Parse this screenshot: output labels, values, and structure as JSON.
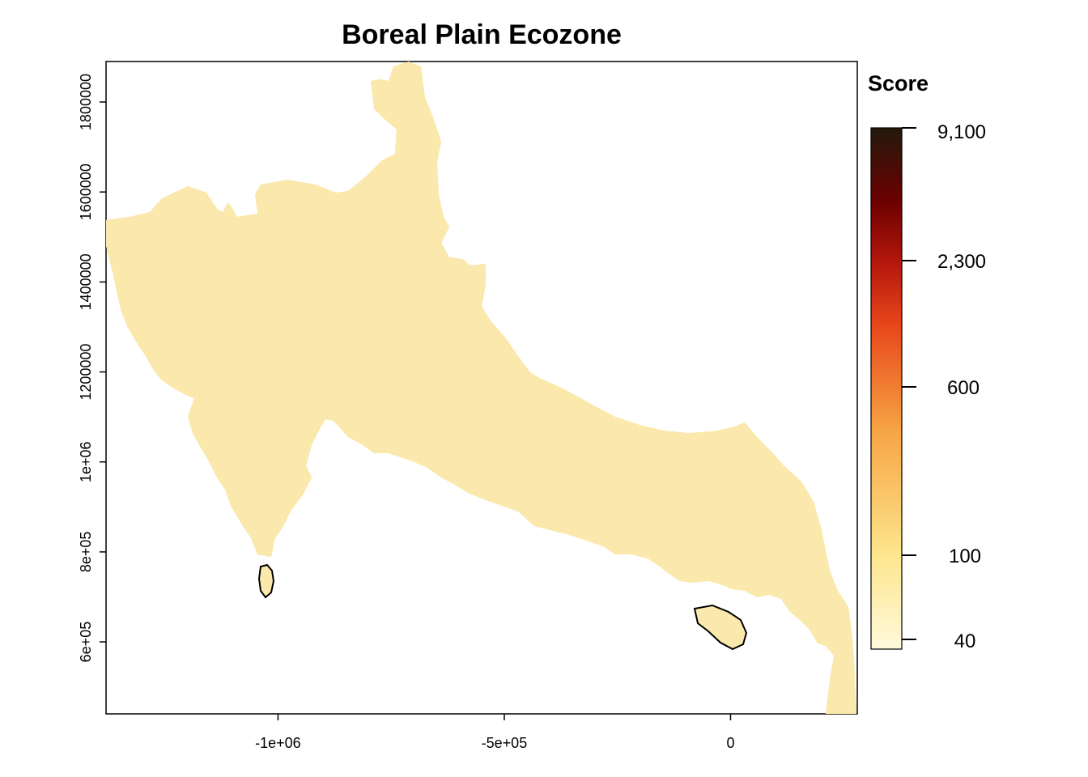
{
  "title": "Boreal Plain Ecozone",
  "x_axis": {
    "ticks": [
      {
        "value": -1000000,
        "label": "-1e+06"
      },
      {
        "value": -500000,
        "label": "-5e+05"
      },
      {
        "value": 0,
        "label": "0"
      }
    ],
    "range": [
      -1380000,
      280000
    ]
  },
  "y_axis": {
    "ticks": [
      {
        "value": 600000,
        "label": "6e+05"
      },
      {
        "value": 800000,
        "label": "8e+05"
      },
      {
        "value": 1000000,
        "label": "1e+06"
      },
      {
        "value": 1200000,
        "label": "1200000"
      },
      {
        "value": 1400000,
        "label": "1400000"
      },
      {
        "value": 1600000,
        "label": "1600000"
      },
      {
        "value": 1800000,
        "label": "1800000"
      }
    ],
    "range": [
      440000,
      1890000
    ]
  },
  "legend": {
    "title": "Score",
    "labels": [
      "9,100",
      "2,300",
      "600",
      "100",
      "40"
    ],
    "colors": [
      "#fff9dc",
      "#fde68d",
      "#f6a444",
      "#e8471a",
      "#b5170c",
      "#6b0000",
      "#231a0c"
    ]
  },
  "map_colors": {
    "fill": "#fbe8ac",
    "dense": "#f7cc6f",
    "hot": "#e89a3a",
    "clear": "#ffffff",
    "outline": "#000000"
  }
}
